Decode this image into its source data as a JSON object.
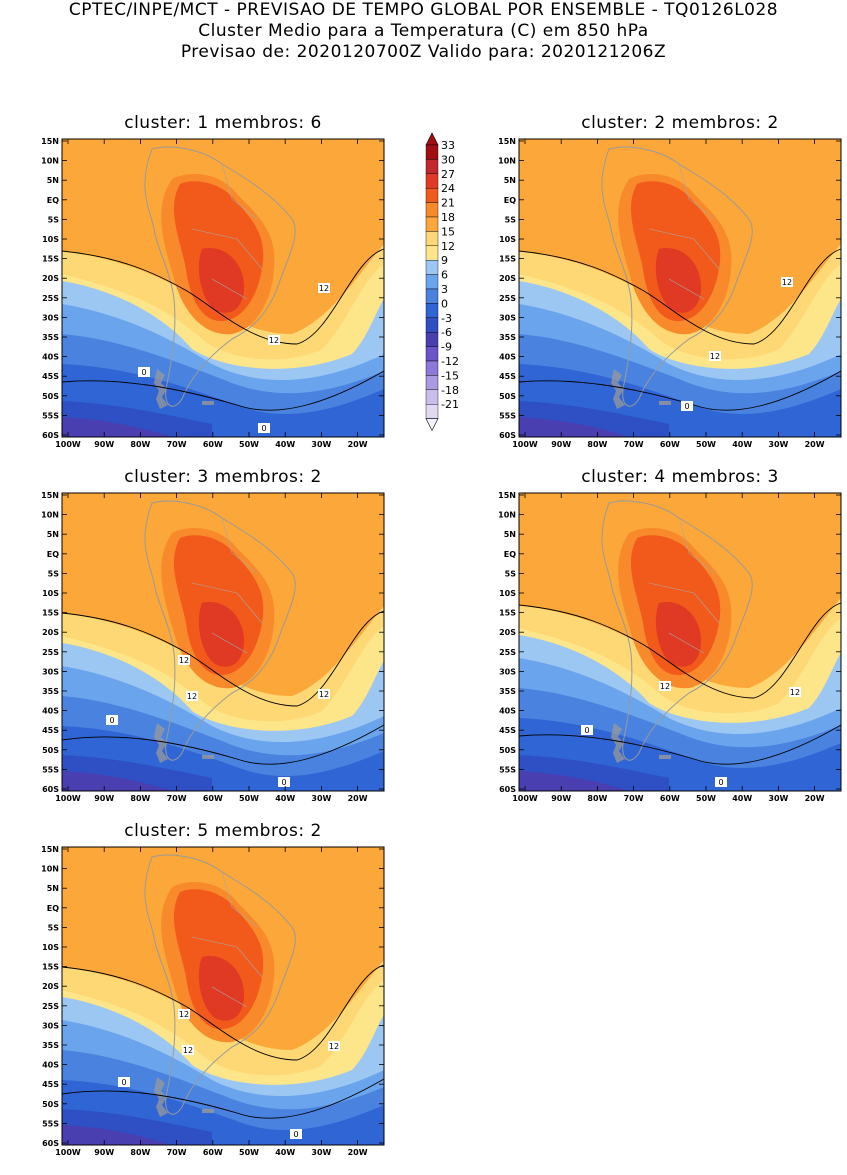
{
  "header": {
    "line1": "CPTEC/INPE/MCT - PREVISAO DE TEMPO GLOBAL POR ENSEMBLE - TQ0126L028",
    "line2": "Cluster Medio para a Temperatura (C) em 850 hPa",
    "line3": "Previsao de: 2020120700Z   Valido para: 2020121206Z"
  },
  "lat_ticks": [
    "15N",
    "10N",
    "5N",
    "EQ",
    "5S",
    "10S",
    "15S",
    "20S",
    "25S",
    "30S",
    "35S",
    "40S",
    "45S",
    "50S",
    "55S",
    "60S"
  ],
  "lon_ticks": [
    "100W",
    "90W",
    "80W",
    "70W",
    "60W",
    "50W",
    "40W",
    "30W",
    "20W"
  ],
  "colorbar": {
    "labels": [
      "33",
      "30",
      "27",
      "24",
      "21",
      "18",
      "15",
      "12",
      "9",
      "6",
      "3",
      "0",
      "-3",
      "-6",
      "-9",
      "-12",
      "-15",
      "-18",
      "-21"
    ],
    "colors": [
      "#a10f14",
      "#c1272d",
      "#e03a24",
      "#f25a1c",
      "#f88a2c",
      "#fba73a",
      "#fdd874",
      "#fde58a",
      "#9cc7f2",
      "#6aa4ec",
      "#4a82e0",
      "#2f65d4",
      "#2f4fc4",
      "#4a3fb0",
      "#6a54c8",
      "#8c78d8",
      "#ab9ae2",
      "#c9bdec",
      "#e1d9f4"
    ]
  },
  "panels": [
    {
      "title": "cluster: 1   membros: 6",
      "labels": [
        "12",
        "12",
        "0",
        "0"
      ]
    },
    {
      "title": "cluster: 2   membros: 2",
      "labels": [
        "12",
        "12",
        "0"
      ]
    },
    {
      "title": "cluster: 3   membros: 2",
      "labels": [
        "12",
        "12",
        "12",
        "0",
        "0"
      ]
    },
    {
      "title": "cluster: 4   membros: 3",
      "labels": [
        "12",
        "12",
        "0",
        "0"
      ]
    },
    {
      "title": "cluster: 5   membros: 2",
      "labels": [
        "12",
        "12",
        "12",
        "0",
        "0"
      ]
    }
  ]
}
